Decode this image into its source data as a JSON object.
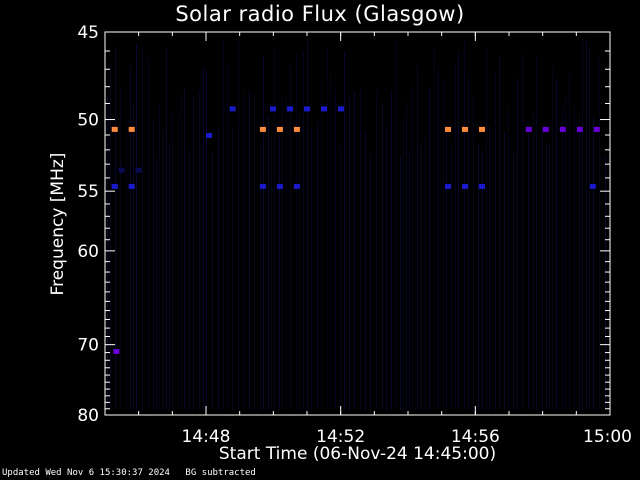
{
  "chart_data": {
    "type": "heatmap",
    "title": "Solar radio Flux (Glasgow)",
    "xlabel": "Start Time (06-Nov-24 14:45:00)",
    "ylabel": "Frequency [MHz]",
    "x_unit": "minutes",
    "xlim": [
      0,
      15
    ],
    "ylim": [
      45,
      80
    ],
    "y_scale": "reciprocal",
    "x_ticks": [
      {
        "value": 3,
        "label": "14:48"
      },
      {
        "value": 7,
        "label": "14:52"
      },
      {
        "value": 11,
        "label": "14:56"
      },
      {
        "value": 15,
        "label": "15:00"
      }
    ],
    "y_ticks": [
      {
        "value": 45,
        "label": "45"
      },
      {
        "value": 50,
        "label": "50"
      },
      {
        "value": 55,
        "label": "55"
      },
      {
        "value": 60,
        "label": "60"
      },
      {
        "value": 70,
        "label": "70"
      },
      {
        "value": 80,
        "label": "80"
      }
    ],
    "y_minor_ticks": [
      46,
      47,
      48,
      49,
      51,
      52,
      53,
      54,
      56,
      57,
      58,
      59,
      61,
      62,
      63,
      64,
      65,
      66,
      67,
      68,
      69,
      71,
      72,
      73,
      74,
      75,
      76,
      77,
      78,
      79
    ],
    "background_color": "#000000",
    "colors": {
      "strong": "#ff8c3c",
      "medium": "#6a00d8",
      "weak": "#1a1acc",
      "faint": "#0a0a55"
    },
    "features": [
      {
        "freq": 50.6,
        "t": [
          0.2,
          1.2
        ],
        "level": "strong"
      },
      {
        "freq": 50.6,
        "t": [
          4.6,
          6.1
        ],
        "level": "strong"
      },
      {
        "freq": 50.6,
        "t": [
          10.1,
          11.6
        ],
        "level": "strong"
      },
      {
        "freq": 50.6,
        "t": [
          12.5,
          14.7
        ],
        "level": "medium"
      },
      {
        "freq": 54.6,
        "t": [
          0.2,
          1.2
        ],
        "level": "weak"
      },
      {
        "freq": 54.6,
        "t": [
          4.6,
          6.1
        ],
        "level": "weak"
      },
      {
        "freq": 54.6,
        "t": [
          10.1,
          11.6
        ],
        "level": "weak"
      },
      {
        "freq": 54.6,
        "t": [
          14.4,
          14.9
        ],
        "level": "weak"
      },
      {
        "freq": 53.4,
        "t": [
          0.4,
          1.2
        ],
        "level": "faint"
      },
      {
        "freq": 49.3,
        "t": [
          3.7,
          4.2
        ],
        "level": "weak"
      },
      {
        "freq": 49.3,
        "t": [
          4.9,
          7.2
        ],
        "level": "weak"
      },
      {
        "freq": 51.0,
        "t": [
          3.0,
          3.2
        ],
        "level": "weak"
      },
      {
        "freq": 70.8,
        "t": [
          0.25,
          0.35
        ],
        "level": "medium"
      }
    ]
  },
  "footer": {
    "updated": "Updated Wed Nov  6 15:30:37 2024",
    "note": "BG subtracted"
  }
}
